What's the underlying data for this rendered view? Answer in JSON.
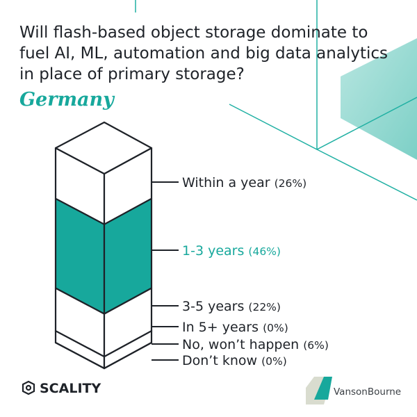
{
  "chart_data": {
    "type": "stacked-column-3d",
    "title": "Will flash-based object storage dominate to fuel AI, ML, automation and big data analytics in place of primary storage?",
    "subtitle": "Germany",
    "categories": [
      "Within a year",
      "1-3 years",
      "3-5 years",
      "In 5+ years",
      "No, won’t happen",
      "Don’t know"
    ],
    "values": [
      26,
      46,
      22,
      0,
      6,
      0
    ],
    "value_labels": [
      "(26%)",
      "(46%)",
      "(22%)",
      "(0%)",
      "(6%)",
      "(0%)"
    ],
    "colors": [
      "#ffffff",
      "#17a89c",
      "#ffffff",
      "#ffffff",
      "#ffffff",
      "#ffffff"
    ]
  },
  "footer": {
    "left_logo": "SCALITY",
    "right_logo": "VansonBourne"
  }
}
